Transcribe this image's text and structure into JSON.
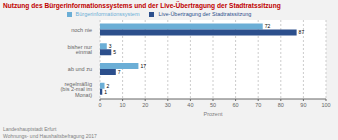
{
  "chart_data": {
    "type": "bar",
    "orientation": "horizontal",
    "title": "Nutzung des Bürgerinformationssystems und der Live-Übertragung der Stadtratssitzung",
    "footnote": "Landeshauptstadt Erfurt\nWohnungs- und Haushaltsbefragung 2017",
    "xlabel": "Prozent",
    "categories": [
      "noch nie",
      "bisher nur einmal",
      "ab und zu",
      "regelmäßig (bis 2-mal im Monat)"
    ],
    "series": [
      {
        "name": "Bürgerinformationssystem",
        "color": "#6baed6",
        "values": [
          72,
          3,
          17,
          2
        ]
      },
      {
        "name": "Live-Übertragung der Stadtratssitzung",
        "color": "#2c4f8c",
        "values": [
          87,
          5,
          7,
          1
        ]
      }
    ],
    "xlim": [
      0,
      100
    ],
    "xticks": [
      0,
      10,
      20,
      30,
      40,
      50,
      60,
      70,
      80,
      90,
      100
    ],
    "grid": true,
    "legend": "top",
    "data_labels": true
  }
}
